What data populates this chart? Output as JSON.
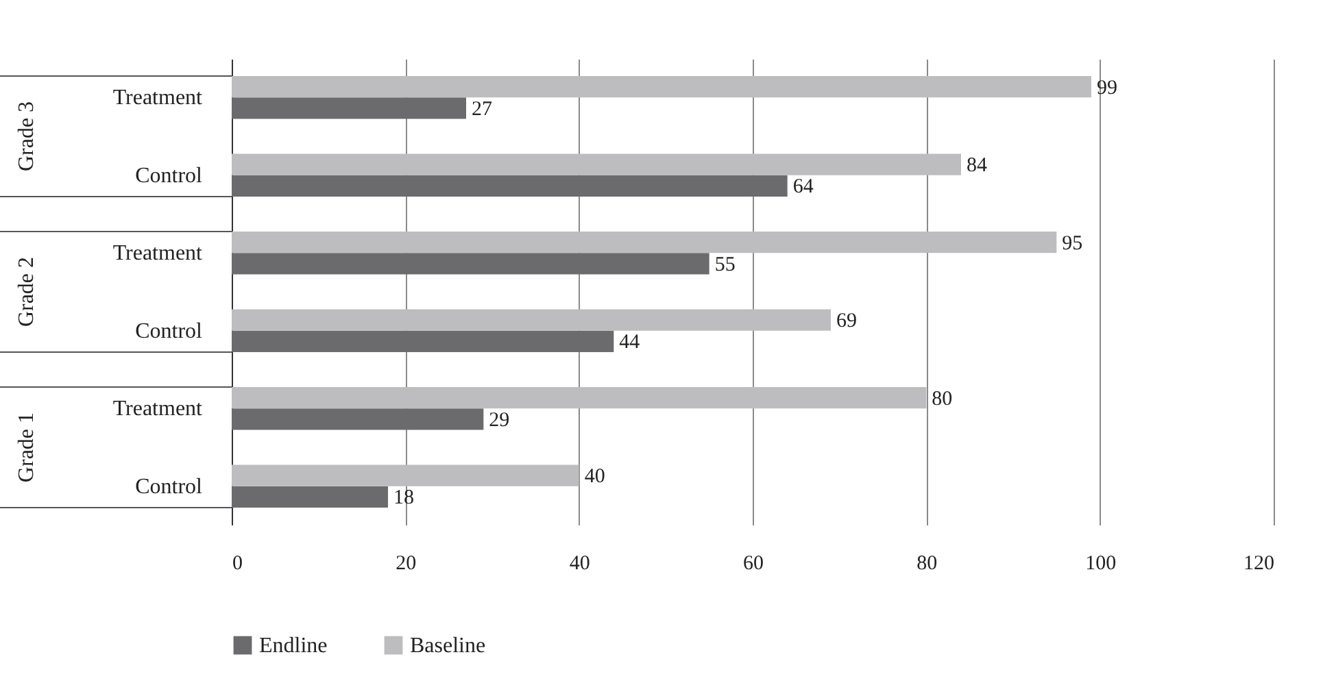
{
  "chart_data": {
    "type": "bar",
    "orientation": "horizontal",
    "categories": [
      "Treatment",
      "Control",
      "Treatment",
      "Control",
      "Treatment",
      "Control"
    ],
    "annotations": [
      "Grade 3",
      "Grade 2",
      "Grade 1"
    ],
    "series": [
      {
        "name": "Endline",
        "color": "#6b6b6d",
        "values": [
          27,
          64,
          55,
          44,
          29,
          18
        ]
      },
      {
        "name": "Baseline",
        "color": "#bdbdbf",
        "values": [
          99,
          84,
          95,
          69,
          80,
          40
        ]
      }
    ],
    "xlim": [
      0,
      120
    ],
    "xticks": [
      0,
      20,
      40,
      60,
      80,
      100,
      120
    ],
    "grid": "x",
    "legend": "bottom",
    "data_labels": true
  }
}
